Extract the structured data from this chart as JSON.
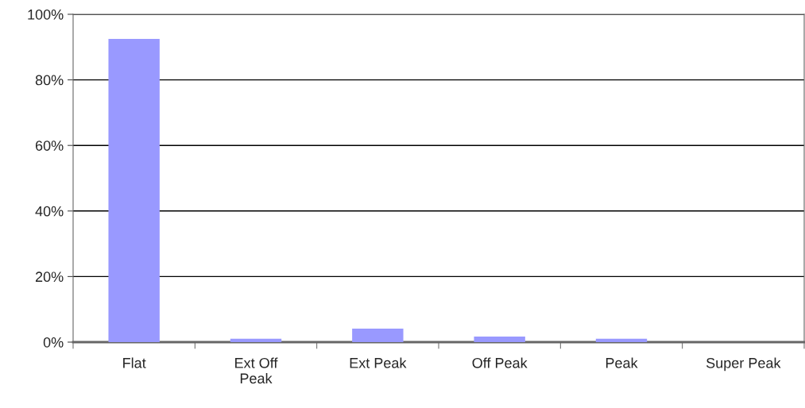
{
  "chart_data": {
    "type": "bar",
    "categories": [
      "Flat",
      "Ext Off\nPeak",
      "Ext Peak",
      "Off Peak",
      "Peak",
      "Super Peak"
    ],
    "values": [
      92.5,
      1.0,
      4.1,
      1.7,
      1.0,
      0
    ],
    "color": "#9999ff",
    "ylim": [
      0,
      100
    ],
    "yticks": [
      {
        "value": 0,
        "label": "0%"
      },
      {
        "value": 20,
        "label": "20%"
      },
      {
        "value": 40,
        "label": "40%"
      },
      {
        "value": 60,
        "label": "60%"
      },
      {
        "value": 80,
        "label": "80%"
      },
      {
        "value": 100,
        "label": "100%"
      }
    ],
    "grid": "y",
    "legend": false
  }
}
